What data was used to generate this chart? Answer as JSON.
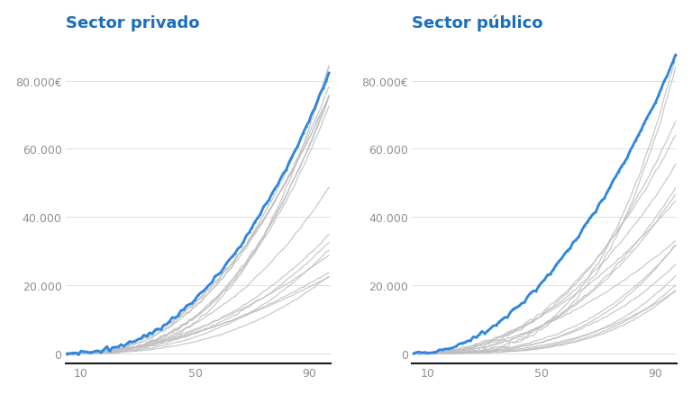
{
  "title_left": "Sector privado",
  "title_right": "Sector público",
  "title_color": "#1a6fbd",
  "title_fontsize": 13,
  "background_color": "#ffffff",
  "blue_color": "#2e86de",
  "gray_color": "#c0c0c0",
  "blue_linewidth": 2.0,
  "gray_linewidth": 0.85,
  "ylim": [
    -3000,
    92000
  ],
  "yticks": [
    0,
    20000,
    40000,
    60000,
    80000
  ],
  "ytick_labels": [
    "0",
    "20.000",
    "40.000",
    "60.000",
    "80.000€"
  ],
  "xticks": [
    10,
    50,
    90
  ],
  "xmin": 5,
  "xmax": 97,
  "n_gray_lines_privado": 16,
  "n_gray_lines_publico": 16,
  "n_points": 93
}
